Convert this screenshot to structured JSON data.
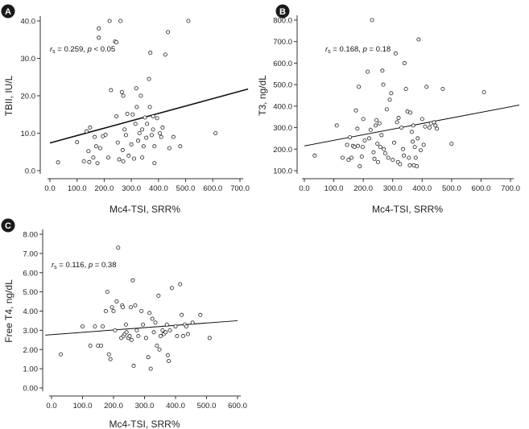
{
  "chart_data": [
    {
      "panel": "A",
      "type": "scatter",
      "xlabel": "Mc4-TSI, SRR%",
      "ylabel": "TBII, IU/L",
      "stat": {
        "rs": "0.259",
        "p_op": "<",
        "p_val": "0.05"
      },
      "xlim": [
        0,
        700
      ],
      "xticks": [
        "0.0",
        "100.0",
        "200.0",
        "300.0",
        "400.0",
        "500.0",
        "600.0",
        "700.0"
      ],
      "ylim": [
        0,
        40
      ],
      "yticks": [
        "0.0",
        "10.0",
        "20.0",
        "30.0",
        "40.0"
      ],
      "fit": {
        "x": [
          0,
          730
        ],
        "y": [
          7.4,
          21.8
        ]
      },
      "points": [
        {
          "x": 30,
          "y": 2.2
        },
        {
          "x": 100,
          "y": 7.6
        },
        {
          "x": 125,
          "y": 2.5
        },
        {
          "x": 135,
          "y": 10.5
        },
        {
          "x": 142,
          "y": 5.2
        },
        {
          "x": 145,
          "y": 2.3
        },
        {
          "x": 148,
          "y": 11.5
        },
        {
          "x": 160,
          "y": 3.5
        },
        {
          "x": 165,
          "y": 9.0
        },
        {
          "x": 170,
          "y": 6.5
        },
        {
          "x": 175,
          "y": 2.0
        },
        {
          "x": 180,
          "y": 38.0
        },
        {
          "x": 180,
          "y": 35.5
        },
        {
          "x": 185,
          "y": 6.0
        },
        {
          "x": 195,
          "y": 9.2
        },
        {
          "x": 205,
          "y": 9.6
        },
        {
          "x": 215,
          "y": 3.5
        },
        {
          "x": 220,
          "y": 40.0
        },
        {
          "x": 225,
          "y": 21.5
        },
        {
          "x": 240,
          "y": 34.5
        },
        {
          "x": 245,
          "y": 34.3
        },
        {
          "x": 245,
          "y": 14.5
        },
        {
          "x": 250,
          "y": 7.5
        },
        {
          "x": 255,
          "y": 3.0
        },
        {
          "x": 260,
          "y": 40.0
        },
        {
          "x": 265,
          "y": 21.0
        },
        {
          "x": 270,
          "y": 20.0
        },
        {
          "x": 268,
          "y": 5.5
        },
        {
          "x": 270,
          "y": 2.5
        },
        {
          "x": 275,
          "y": 11.0
        },
        {
          "x": 280,
          "y": 9.5
        },
        {
          "x": 285,
          "y": 15.2
        },
        {
          "x": 290,
          "y": 4.0
        },
        {
          "x": 300,
          "y": 7.0
        },
        {
          "x": 305,
          "y": 15.0
        },
        {
          "x": 310,
          "y": 3.2
        },
        {
          "x": 315,
          "y": 12.5
        },
        {
          "x": 318,
          "y": 22.0
        },
        {
          "x": 320,
          "y": 17.0
        },
        {
          "x": 325,
          "y": 8.0
        },
        {
          "x": 330,
          "y": 10.0
        },
        {
          "x": 335,
          "y": 20.0
        },
        {
          "x": 340,
          "y": 11.0
        },
        {
          "x": 340,
          "y": 3.5
        },
        {
          "x": 345,
          "y": 6.5
        },
        {
          "x": 350,
          "y": 14.2
        },
        {
          "x": 355,
          "y": 8.8
        },
        {
          "x": 358,
          "y": 12.5
        },
        {
          "x": 365,
          "y": 24.5
        },
        {
          "x": 368,
          "y": 17.0
        },
        {
          "x": 370,
          "y": 31.5
        },
        {
          "x": 375,
          "y": 9.5
        },
        {
          "x": 380,
          "y": 14.5
        },
        {
          "x": 380,
          "y": 11.0
        },
        {
          "x": 385,
          "y": 6.5
        },
        {
          "x": 385,
          "y": 2.0
        },
        {
          "x": 395,
          "y": 14.0
        },
        {
          "x": 405,
          "y": 10.0
        },
        {
          "x": 410,
          "y": 9.0
        },
        {
          "x": 415,
          "y": 11.5
        },
        {
          "x": 425,
          "y": 31.0
        },
        {
          "x": 435,
          "y": 37.0
        },
        {
          "x": 440,
          "y": 6.0
        },
        {
          "x": 455,
          "y": 9.0
        },
        {
          "x": 480,
          "y": 6.5
        },
        {
          "x": 510,
          "y": 40.0
        },
        {
          "x": 610,
          "y": 10.0
        }
      ]
    },
    {
      "panel": "B",
      "type": "scatter",
      "xlabel": "Mc4-TSI, SRR%",
      "ylabel": "T3, ng/dL",
      "stat": {
        "rs": "0.168",
        "p_op": "=",
        "p_val": "0.18"
      },
      "xlim": [
        0,
        700
      ],
      "xticks": [
        "0.0",
        "100.0",
        "200.0",
        "300.0",
        "400.0",
        "500.0",
        "600.0",
        "700.0"
      ],
      "ylim": [
        100,
        800
      ],
      "yticks": [
        "100.0",
        "200.0",
        "300.0",
        "400.0",
        "500.0",
        "600.0",
        "700.0",
        "800.0"
      ],
      "fit": {
        "x": [
          0,
          730
        ],
        "y": [
          215,
          405
        ]
      },
      "points": [
        {
          "x": 35,
          "y": 170
        },
        {
          "x": 110,
          "y": 310
        },
        {
          "x": 130,
          "y": 160
        },
        {
          "x": 145,
          "y": 220
        },
        {
          "x": 150,
          "y": 150
        },
        {
          "x": 155,
          "y": 255
        },
        {
          "x": 160,
          "y": 160
        },
        {
          "x": 165,
          "y": 215
        },
        {
          "x": 170,
          "y": 210
        },
        {
          "x": 175,
          "y": 380
        },
        {
          "x": 180,
          "y": 295
        },
        {
          "x": 182,
          "y": 215
        },
        {
          "x": 185,
          "y": 490
        },
        {
          "x": 188,
          "y": 120
        },
        {
          "x": 195,
          "y": 165
        },
        {
          "x": 198,
          "y": 210
        },
        {
          "x": 200,
          "y": 340
        },
        {
          "x": 205,
          "y": 240
        },
        {
          "x": 215,
          "y": 560
        },
        {
          "x": 220,
          "y": 250
        },
        {
          "x": 225,
          "y": 290
        },
        {
          "x": 230,
          "y": 800
        },
        {
          "x": 235,
          "y": 185
        },
        {
          "x": 238,
          "y": 155
        },
        {
          "x": 242,
          "y": 310
        },
        {
          "x": 245,
          "y": 335
        },
        {
          "x": 248,
          "y": 225
        },
        {
          "x": 250,
          "y": 140
        },
        {
          "x": 255,
          "y": 320
        },
        {
          "x": 258,
          "y": 210
        },
        {
          "x": 262,
          "y": 265
        },
        {
          "x": 265,
          "y": 565
        },
        {
          "x": 268,
          "y": 500
        },
        {
          "x": 270,
          "y": 200
        },
        {
          "x": 275,
          "y": 180
        },
        {
          "x": 280,
          "y": 385
        },
        {
          "x": 285,
          "y": 160
        },
        {
          "x": 290,
          "y": 430
        },
        {
          "x": 295,
          "y": 460
        },
        {
          "x": 300,
          "y": 150
        },
        {
          "x": 305,
          "y": 230
        },
        {
          "x": 310,
          "y": 645
        },
        {
          "x": 315,
          "y": 325
        },
        {
          "x": 318,
          "y": 140
        },
        {
          "x": 320,
          "y": 345
        },
        {
          "x": 325,
          "y": 130
        },
        {
          "x": 330,
          "y": 300
        },
        {
          "x": 335,
          "y": 200
        },
        {
          "x": 338,
          "y": 170
        },
        {
          "x": 340,
          "y": 600
        },
        {
          "x": 345,
          "y": 480
        },
        {
          "x": 350,
          "y": 375
        },
        {
          "x": 355,
          "y": 160
        },
        {
          "x": 358,
          "y": 125
        },
        {
          "x": 360,
          "y": 370
        },
        {
          "x": 365,
          "y": 280
        },
        {
          "x": 368,
          "y": 235
        },
        {
          "x": 370,
          "y": 310
        },
        {
          "x": 372,
          "y": 125
        },
        {
          "x": 375,
          "y": 210
        },
        {
          "x": 378,
          "y": 160
        },
        {
          "x": 382,
          "y": 120
        },
        {
          "x": 385,
          "y": 250
        },
        {
          "x": 388,
          "y": 710
        },
        {
          "x": 395,
          "y": 195
        },
        {
          "x": 400,
          "y": 340
        },
        {
          "x": 405,
          "y": 220
        },
        {
          "x": 410,
          "y": 305
        },
        {
          "x": 415,
          "y": 490
        },
        {
          "x": 425,
          "y": 300
        },
        {
          "x": 430,
          "y": 320
        },
        {
          "x": 440,
          "y": 325
        },
        {
          "x": 445,
          "y": 310
        },
        {
          "x": 450,
          "y": 295
        },
        {
          "x": 470,
          "y": 480
        },
        {
          "x": 500,
          "y": 225
        },
        {
          "x": 610,
          "y": 465
        }
      ]
    },
    {
      "panel": "C",
      "type": "scatter",
      "xlabel": "Mc4-TSI, SRR%",
      "ylabel": "Free T4, ng/dL",
      "stat": {
        "rs": "0.116",
        "p_op": "=",
        "p_val": "0.38"
      },
      "xlim": [
        0,
        600
      ],
      "xticks": [
        "0.0",
        "100.0",
        "200.0",
        "300.0",
        "400.0",
        "500.0",
        "600.0"
      ],
      "ylim": [
        0,
        8
      ],
      "yticks": [
        "0.00",
        "1.00",
        "2.00",
        "3.00",
        "4.00",
        "5.00",
        "6.00",
        "7.00",
        "8.00"
      ],
      "fit": {
        "x": [
          -20,
          600
        ],
        "y": [
          2.75,
          3.5
        ]
      },
      "points": [
        {
          "x": 30,
          "y": 1.75
        },
        {
          "x": 100,
          "y": 3.2
        },
        {
          "x": 125,
          "y": 2.2
        },
        {
          "x": 140,
          "y": 3.2
        },
        {
          "x": 150,
          "y": 2.2
        },
        {
          "x": 160,
          "y": 2.2
        },
        {
          "x": 165,
          "y": 3.2
        },
        {
          "x": 175,
          "y": 4.0
        },
        {
          "x": 180,
          "y": 5.0
        },
        {
          "x": 185,
          "y": 1.75
        },
        {
          "x": 190,
          "y": 1.5
        },
        {
          "x": 195,
          "y": 4.2
        },
        {
          "x": 200,
          "y": 4.0
        },
        {
          "x": 205,
          "y": 3.0
        },
        {
          "x": 210,
          "y": 4.5
        },
        {
          "x": 215,
          "y": 7.3
        },
        {
          "x": 225,
          "y": 2.6
        },
        {
          "x": 228,
          "y": 4.3
        },
        {
          "x": 230,
          "y": 4.2
        },
        {
          "x": 232,
          "y": 2.7
        },
        {
          "x": 236,
          "y": 2.8
        },
        {
          "x": 240,
          "y": 3.3
        },
        {
          "x": 242,
          "y": 2.9
        },
        {
          "x": 248,
          "y": 2.6
        },
        {
          "x": 252,
          "y": 2.7
        },
        {
          "x": 256,
          "y": 4.2
        },
        {
          "x": 258,
          "y": 2.5
        },
        {
          "x": 262,
          "y": 5.6
        },
        {
          "x": 265,
          "y": 1.15
        },
        {
          "x": 270,
          "y": 4.3
        },
        {
          "x": 275,
          "y": 3.0
        },
        {
          "x": 280,
          "y": 2.7
        },
        {
          "x": 290,
          "y": 4.0
        },
        {
          "x": 295,
          "y": 3.3
        },
        {
          "x": 305,
          "y": 2.6
        },
        {
          "x": 312,
          "y": 1.6
        },
        {
          "x": 316,
          "y": 3.9
        },
        {
          "x": 320,
          "y": 1.0
        },
        {
          "x": 325,
          "y": 3.6
        },
        {
          "x": 330,
          "y": 2.9
        },
        {
          "x": 335,
          "y": 3.4
        },
        {
          "x": 340,
          "y": 2.2
        },
        {
          "x": 345,
          "y": 4.8
        },
        {
          "x": 348,
          "y": 2.0
        },
        {
          "x": 352,
          "y": 2.7
        },
        {
          "x": 358,
          "y": 3.0
        },
        {
          "x": 362,
          "y": 2.8
        },
        {
          "x": 368,
          "y": 2.9
        },
        {
          "x": 372,
          "y": 3.3
        },
        {
          "x": 375,
          "y": 1.7
        },
        {
          "x": 378,
          "y": 1.4
        },
        {
          "x": 382,
          "y": 3.0
        },
        {
          "x": 388,
          "y": 5.2
        },
        {
          "x": 400,
          "y": 3.2
        },
        {
          "x": 405,
          "y": 2.7
        },
        {
          "x": 415,
          "y": 5.4
        },
        {
          "x": 420,
          "y": 3.8
        },
        {
          "x": 425,
          "y": 2.7
        },
        {
          "x": 430,
          "y": 3.3
        },
        {
          "x": 435,
          "y": 3.2
        },
        {
          "x": 440,
          "y": 2.8
        },
        {
          "x": 455,
          "y": 3.4
        },
        {
          "x": 480,
          "y": 3.8
        },
        {
          "x": 510,
          "y": 2.6
        }
      ]
    }
  ]
}
